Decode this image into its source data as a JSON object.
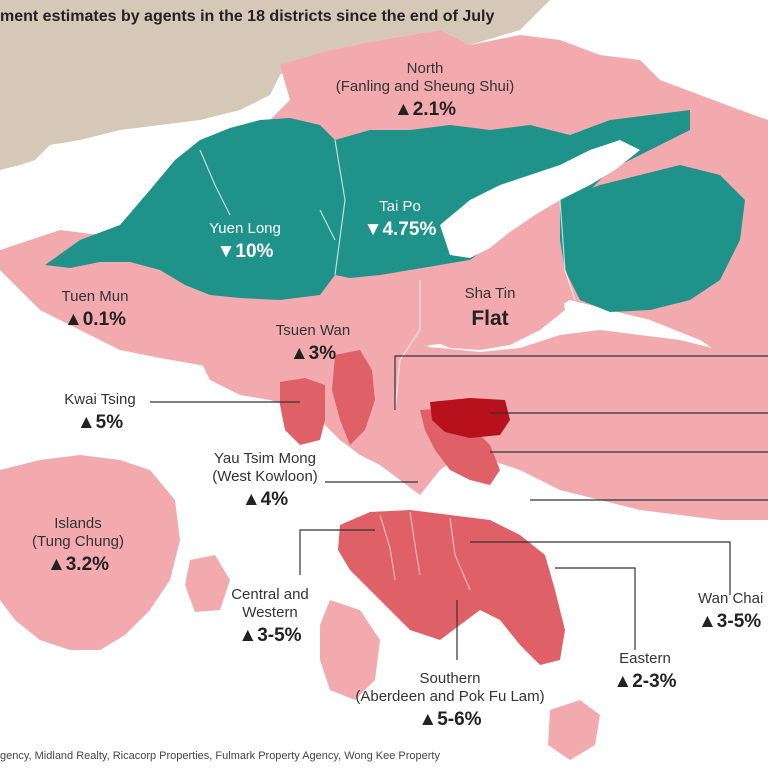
{
  "title": "ment estimates by agents in the 18 districts since the end of July",
  "source": "gency, Midland Realty, Ricacorp Properties, Fulmark Property Agency, Wong Kee Property",
  "colors": {
    "land_background": "#d6c8b6",
    "water": "#ffffff",
    "pink": "#f2aaae",
    "teal": "#1f938a",
    "red_medium": "#e06068",
    "red_dark": "#b8101c",
    "leader_line": "#333333"
  },
  "districts": {
    "north": {
      "name_line1": "North",
      "name_line2": "(Fanling and Sheung Shui)",
      "value": "▲2.1%"
    },
    "yuen_long": {
      "name_line1": "Yuen Long",
      "value": "▼10%"
    },
    "tai_po": {
      "name_line1": "Tai Po",
      "value": "▼4.75%"
    },
    "tuen_mun": {
      "name_line1": "Tuen Mun",
      "value": "▲0.1%"
    },
    "sha_tin": {
      "name_line1": "Sha Tin",
      "value": "Flat"
    },
    "tsuen_wan": {
      "name_line1": "Tsuen Wan",
      "value": "▲3%"
    },
    "kwai_tsing": {
      "name_line1": "Kwai Tsing",
      "value": "▲5%"
    },
    "yau_tsim_mong": {
      "name_line1": "Yau Tsim Mong",
      "name_line2": "(West Kowloon)",
      "value": "▲4%"
    },
    "islands": {
      "name_line1": "Islands",
      "name_line2": "(Tung Chung)",
      "value": "▲3.2%"
    },
    "central_western": {
      "name_line1": "Central and",
      "name_line2": "Western",
      "value": "▲3-5%"
    },
    "southern": {
      "name_line1": "Southern",
      "name_line2": "(Aberdeen and Pok Fu Lam)",
      "value": "▲5-6%"
    },
    "eastern": {
      "name_line1": "Eastern",
      "value": "▲2-3%"
    },
    "wan_chai": {
      "name_line1": "Wan Chai",
      "value": "▲3-5%"
    }
  }
}
